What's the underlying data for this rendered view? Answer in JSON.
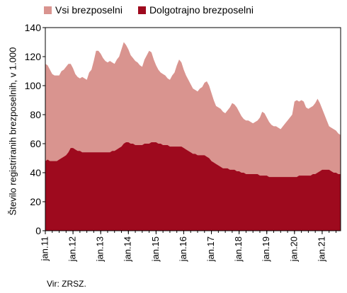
{
  "chart_data": {
    "type": "area",
    "ylabel": "Število registriranih brezposelnih, v 1.000",
    "xlabel": "",
    "ylim": [
      0,
      140
    ],
    "yticks": [
      0,
      20,
      40,
      60,
      80,
      100,
      120,
      140
    ],
    "grid": false,
    "legend_position": "top",
    "x_tick_labels": [
      "jan.11",
      "jan.12",
      "jan.13",
      "jan.14",
      "jan.15",
      "jan.16",
      "jan.17",
      "jan.18",
      "jan.19",
      "jan.20",
      "jan.21"
    ],
    "x_start": "2011-01",
    "x_end": "2021-09",
    "series": [
      {
        "name": "Vsi brezposelni",
        "color": "#d9948f",
        "values": [
          115,
          114,
          111,
          108,
          107,
          107,
          107,
          110,
          111,
          113,
          115,
          115,
          112,
          108,
          106,
          105,
          106,
          105,
          104,
          109,
          111,
          117,
          124,
          124,
          122,
          119,
          117,
          116,
          117,
          116,
          115,
          118,
          120,
          125,
          130,
          128,
          125,
          121,
          119,
          117,
          116,
          114,
          113,
          118,
          121,
          124,
          123,
          118,
          114,
          111,
          109,
          108,
          107,
          105,
          104,
          107,
          109,
          114,
          118,
          116,
          111,
          107,
          104,
          101,
          98,
          97,
          96,
          98,
          99,
          102,
          103,
          100,
          95,
          90,
          86,
          85,
          84,
          82,
          81,
          83,
          85,
          88,
          87,
          85,
          82,
          79,
          77,
          76,
          76,
          75,
          74,
          75,
          76,
          78,
          82,
          81,
          78,
          75,
          73,
          72,
          72,
          71,
          70,
          72,
          74,
          76,
          78,
          80,
          89,
          90,
          89,
          90,
          89,
          85,
          84,
          85,
          86,
          88,
          91,
          88,
          84,
          80,
          76,
          72,
          71,
          70,
          69,
          67,
          66
        ]
      },
      {
        "name": "Dolgotrajno brezposelni",
        "color": "#9e0a1e",
        "values": [
          48,
          49,
          48,
          48,
          48,
          48,
          49,
          50,
          51,
          52,
          54,
          57,
          57,
          56,
          55,
          55,
          54,
          54,
          54,
          54,
          54,
          54,
          54,
          54,
          54,
          54,
          54,
          54,
          54,
          55,
          55,
          56,
          57,
          58,
          60,
          61,
          61,
          60,
          60,
          59,
          59,
          59,
          59,
          60,
          60,
          60,
          61,
          61,
          61,
          60,
          60,
          59,
          59,
          59,
          58,
          58,
          58,
          58,
          58,
          58,
          57,
          56,
          55,
          54,
          53,
          53,
          52,
          52,
          52,
          52,
          51,
          50,
          48,
          47,
          46,
          45,
          44,
          43,
          43,
          43,
          42,
          42,
          42,
          41,
          41,
          40,
          40,
          39,
          39,
          39,
          39,
          39,
          39,
          38,
          38,
          38,
          38,
          37,
          37,
          37,
          37,
          37,
          37,
          37,
          37,
          37,
          37,
          37,
          37,
          37,
          38,
          38,
          38,
          38,
          38,
          38,
          39,
          39,
          40,
          41,
          42,
          42,
          42,
          42,
          41,
          40,
          40,
          39,
          39
        ]
      }
    ]
  },
  "source_text": "Vir: ZRSZ."
}
